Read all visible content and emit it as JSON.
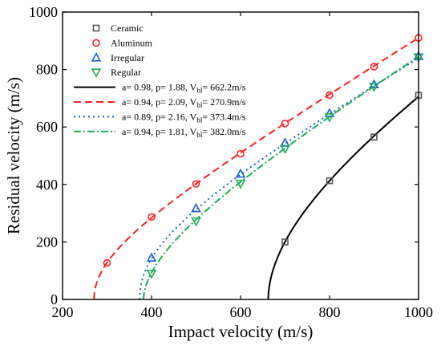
{
  "chart_data": {
    "type": "scatter",
    "xlabel": "Impact velocity (m/s)",
    "ylabel": "Residual velocity (m/s)",
    "xlim": [
      200,
      1000
    ],
    "ylim": [
      0,
      1000
    ],
    "xticks": [
      200,
      400,
      600,
      800,
      1000
    ],
    "yticks": [
      0,
      200,
      400,
      600,
      800,
      1000
    ],
    "legend_position": "top-left",
    "grid": false,
    "series": [
      {
        "name": "Ceramic",
        "marker": "square",
        "color": "#555555",
        "points": [
          [
            700,
            200
          ],
          [
            800,
            413
          ],
          [
            900,
            565
          ],
          [
            1000,
            710
          ]
        ]
      },
      {
        "name": "Aluminum",
        "marker": "circle",
        "color": "#ff2020",
        "points": [
          [
            300,
            127
          ],
          [
            400,
            287
          ],
          [
            500,
            402
          ],
          [
            600,
            507
          ],
          [
            700,
            612
          ],
          [
            800,
            711
          ],
          [
            900,
            810
          ],
          [
            1000,
            910
          ]
        ]
      },
      {
        "name": "Irregular",
        "marker": "triangle-up",
        "color": "#1a5fd8",
        "points": [
          [
            400,
            145
          ],
          [
            500,
            317
          ],
          [
            600,
            437
          ],
          [
            700,
            545
          ],
          [
            800,
            648
          ],
          [
            900,
            748
          ],
          [
            1000,
            847
          ]
        ]
      },
      {
        "name": "Regular",
        "marker": "triangle-down",
        "color": "#1fae55",
        "points": [
          [
            400,
            90
          ],
          [
            500,
            272
          ],
          [
            600,
            403
          ],
          [
            700,
            524
          ],
          [
            800,
            634
          ],
          [
            900,
            740
          ],
          [
            1000,
            843
          ]
        ]
      }
    ],
    "fits": [
      {
        "label_main": "a= 0.98, p= 1.88, V",
        "label_sub": "bl",
        "label_tail": "= 662.2m/s",
        "a": 0.98,
        "p": 1.88,
        "vbl": 662.2,
        "color": "#000000",
        "dash": "none"
      },
      {
        "label_main": "a= 0.94, p= 2.09, V",
        "label_sub": "bl",
        "label_tail": "= 270.9m/s",
        "a": 0.94,
        "p": 2.09,
        "vbl": 270.9,
        "color": "#ff2020",
        "dash": "9,5"
      },
      {
        "label_main": "a= 0.89, p= 2.16, V",
        "label_sub": "bl",
        "label_tail": "= 373.4m/s",
        "a": 0.89,
        "p": 2.16,
        "vbl": 373.4,
        "color": "#1a5fd8",
        "dash": "2,4"
      },
      {
        "label_main": "a= 0.94, p= 1.81, V",
        "label_sub": "bl",
        "label_tail": "= 382.0m/s",
        "a": 0.94,
        "p": 1.81,
        "vbl": 382.0,
        "color": "#1fae55",
        "dash": "9,3,2,3"
      }
    ]
  }
}
